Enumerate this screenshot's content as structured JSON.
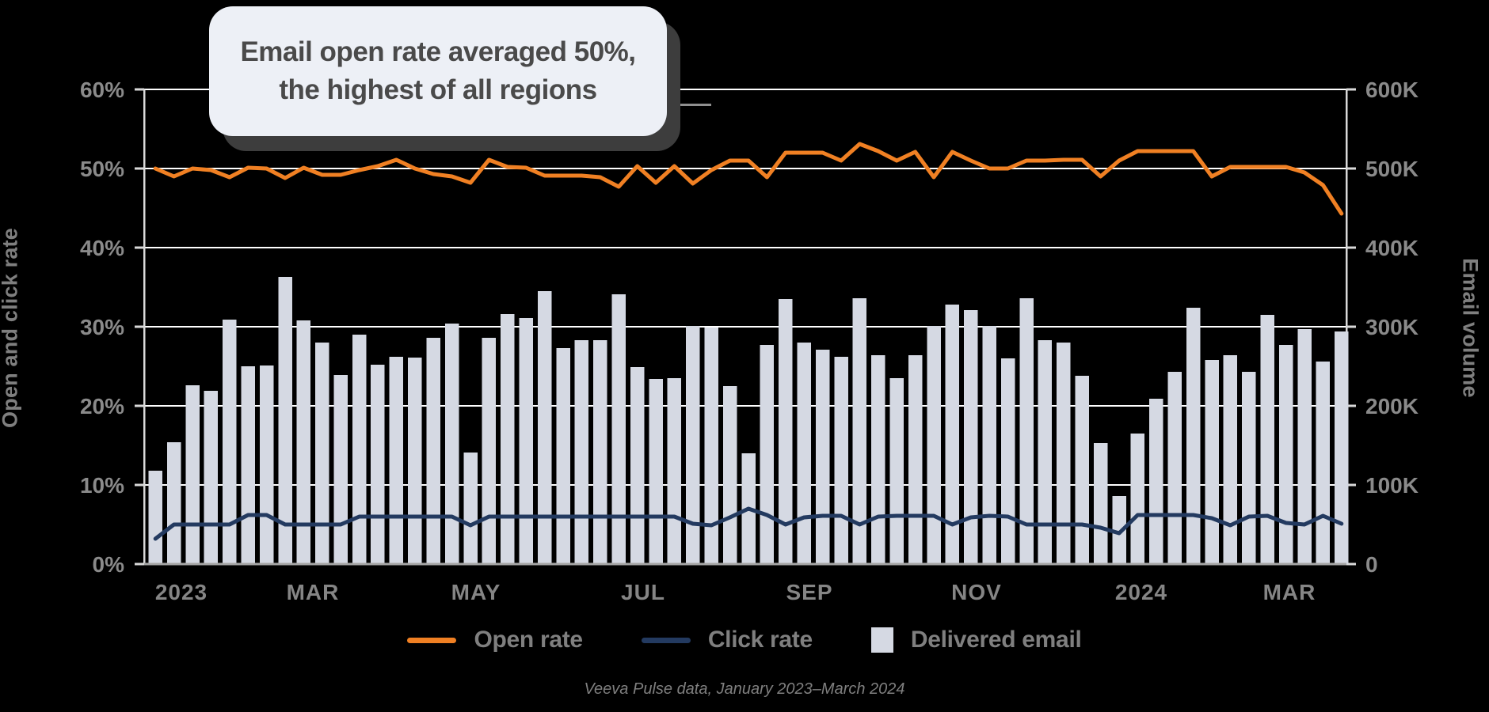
{
  "callout": {
    "line1": "Email open rate averaged 50%,",
    "line2": "the highest of all regions"
  },
  "left_axis": {
    "title": "Open and click rate",
    "tick_labels": [
      "60%",
      "50%",
      "40%",
      "30%",
      "20%",
      "10%",
      "0%"
    ]
  },
  "right_axis": {
    "title": "Email volume",
    "tick_labels": [
      "600K",
      "500K",
      "400K",
      "300K",
      "200K",
      "100K",
      "0"
    ]
  },
  "x_axis": {
    "month_labels": [
      {
        "text": "2023",
        "week": 2.4,
        "bold": true
      },
      {
        "text": "MAR",
        "week": 9.5,
        "bold": false
      },
      {
        "text": "MAY",
        "week": 18.3,
        "bold": false
      },
      {
        "text": "JUL",
        "week": 27.3,
        "bold": false
      },
      {
        "text": "SEP",
        "week": 36.3,
        "bold": false
      },
      {
        "text": "NOV",
        "week": 45.3,
        "bold": false
      },
      {
        "text": "2024",
        "week": 54.2,
        "bold": true
      },
      {
        "text": "MAR",
        "week": 62.2,
        "bold": false
      }
    ]
  },
  "legend": [
    {
      "label": "Open rate",
      "swatch": "line",
      "color": "#F08023"
    },
    {
      "label": "Click rate",
      "swatch": "line",
      "color": "#233A60"
    },
    {
      "label": "Delivered email",
      "swatch": "square",
      "color": "#D5D9E3"
    }
  ],
  "caption": "Veeva Pulse data, January 2023–March 2024",
  "colors": {
    "background": "#000000",
    "gridline": "#FFFFFF",
    "axis_edge": "#D9D9D9",
    "baseline": "#A6A6A6",
    "open_rate": "#F08023",
    "click_rate": "#233A60",
    "bars": "#D5D9E3",
    "tick_text": "#8A8A8A",
    "month_text": "#858585",
    "callout_bg": "#EDF0F6",
    "callout_text": "#4A4A4A"
  },
  "chart_data": {
    "type": "combo-bar-line",
    "x_unit": "week (Jan 2023 – Mar 2024, 65 weekly points)",
    "left_ylim": [
      0,
      60
    ],
    "left_yticks_pct": [
      0,
      10,
      20,
      30,
      40,
      50,
      60
    ],
    "right_ylim_K": [
      0,
      600
    ],
    "right_yticks_K": [
      0,
      100,
      200,
      300,
      400,
      500,
      600
    ],
    "grid": "horizontal-only",
    "legend_position": "bottom-center",
    "series": [
      {
        "name": "Open rate",
        "type": "line",
        "axis": "left",
        "unit": "%",
        "values": [
          50.0,
          49.0,
          50.0,
          49.8,
          48.9,
          50.1,
          50.0,
          48.8,
          50.1,
          49.2,
          49.2,
          49.8,
          50.3,
          51.1,
          50.0,
          49.3,
          49.0,
          48.2,
          51.1,
          50.2,
          50.1,
          49.1,
          49.1,
          49.1,
          48.9,
          47.7,
          50.3,
          48.2,
          50.3,
          48.1,
          49.8,
          51.0,
          51.0,
          48.9,
          52.0,
          52.0,
          52.0,
          51.0,
          53.1,
          52.2,
          51.0,
          52.1,
          48.9,
          52.1,
          51.0,
          50.0,
          50.0,
          51.0,
          51.0,
          51.1,
          51.1,
          49.0,
          51.0,
          52.2,
          52.2,
          52.2,
          52.2,
          49.0,
          50.2,
          50.2,
          50.2,
          50.2,
          49.5,
          47.9,
          44.3
        ]
      },
      {
        "name": "Click rate",
        "type": "line",
        "axis": "left",
        "unit": "%",
        "values": [
          3.2,
          5.0,
          5.0,
          5.0,
          5.0,
          6.2,
          6.2,
          5.0,
          5.0,
          5.0,
          5.0,
          6.0,
          6.0,
          6.0,
          6.0,
          6.0,
          6.0,
          4.9,
          6.0,
          6.0,
          6.0,
          6.0,
          6.0,
          6.0,
          6.0,
          6.0,
          6.0,
          6.0,
          6.0,
          5.1,
          4.9,
          5.9,
          7.0,
          6.2,
          5.0,
          5.9,
          6.1,
          6.1,
          5.0,
          6.0,
          6.1,
          6.1,
          6.1,
          5.0,
          5.9,
          6.1,
          6.0,
          5.0,
          5.0,
          5.0,
          5.0,
          4.6,
          3.9,
          6.2,
          6.2,
          6.2,
          6.2,
          5.8,
          4.9,
          6.0,
          6.1,
          5.2,
          5.0,
          6.1,
          5.1
        ]
      },
      {
        "name": "Delivered email",
        "type": "bar",
        "axis": "right",
        "unit": "K emails",
        "values": [
          118,
          154,
          226,
          219,
          309,
          250,
          251,
          363,
          308,
          280,
          239,
          290,
          252,
          262,
          261,
          286,
          304,
          141,
          286,
          316,
          311,
          345,
          273,
          283,
          283,
          341,
          249,
          234,
          235,
          301,
          299,
          225,
          140,
          277,
          335,
          280,
          271,
          262,
          336,
          264,
          235,
          264,
          301,
          328,
          321,
          301,
          260,
          336,
          283,
          280,
          238,
          153,
          86,
          165,
          209,
          243,
          324,
          258,
          264,
          243,
          315,
          277,
          297,
          256,
          294
        ]
      }
    ]
  }
}
